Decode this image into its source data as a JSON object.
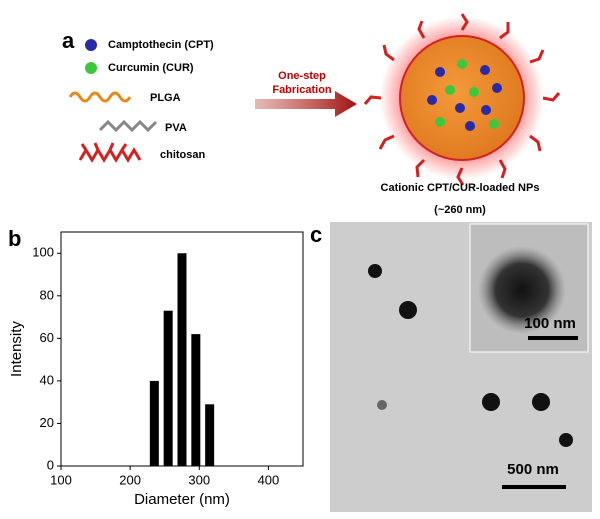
{
  "panel_a": {
    "label": "a",
    "legend": [
      "Camptothecin (CPT)",
      "Curcumin (CUR)",
      "PLGA",
      "PVA",
      "chitosan"
    ],
    "arrow_label": [
      "One-step",
      "Fabrication"
    ],
    "product_label": [
      "Cationic CPT/CUR-loaded NPs",
      "(~260 nm)"
    ]
  },
  "chart_data": {
    "type": "bar",
    "panel_label": "b",
    "x": [
      235,
      255,
      275,
      295,
      315
    ],
    "values": [
      40,
      73,
      100,
      62,
      29
    ],
    "color": "#000000",
    "xlabel": "Diameter (nm)",
    "ylabel": "Intensity",
    "xlim": [
      100,
      450
    ],
    "ylim": [
      0,
      110
    ],
    "xticks": [
      100,
      200,
      300,
      400
    ],
    "yticks": [
      0,
      20,
      40,
      60,
      80,
      100
    ]
  },
  "panel_c": {
    "label": "c",
    "scale_bars": [
      "100 nm",
      "500 nm"
    ]
  }
}
